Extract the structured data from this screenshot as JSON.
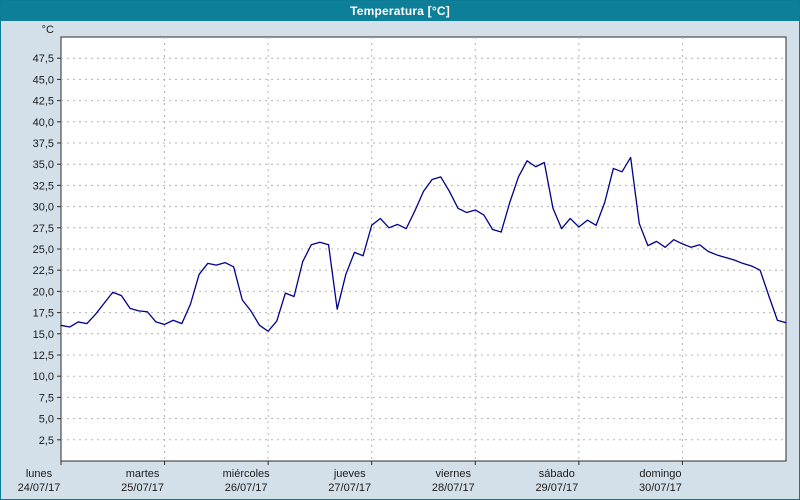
{
  "window": {
    "title": "Temperatura [°C]"
  },
  "colors": {
    "titlebar": "#0e7f99",
    "window_background": "#d4e0e9",
    "plot_background": "#ffffff",
    "plot_border": "#2b2b2b",
    "grid": "#b3b3b3",
    "line": "#00008b",
    "label_text": "#1a1a1a"
  },
  "chart_data": {
    "type": "line",
    "title": "Temperatura [°C]",
    "xlabel": "",
    "ylabel": "°C",
    "ylim": [
      0,
      50
    ],
    "ytick_step": 2.5,
    "grid": "dashed",
    "legend": "none",
    "yticks": [
      "47,5",
      "45,0",
      "42,5",
      "40,0",
      "37,5",
      "35,0",
      "32,5",
      "30,0",
      "27,5",
      "25,0",
      "22,5",
      "20,0",
      "17,5",
      "15,0",
      "12,5",
      "10,0",
      "7,5",
      "5,0",
      "2,5"
    ],
    "x_days": [
      {
        "name": "lunes",
        "date": "24/07/17"
      },
      {
        "name": "martes",
        "date": "25/07/17"
      },
      {
        "name": "miércoles",
        "date": "26/07/17"
      },
      {
        "name": "jueves",
        "date": "27/07/17"
      },
      {
        "name": "viernes",
        "date": "28/07/17"
      },
      {
        "name": "sábado",
        "date": "29/07/17"
      },
      {
        "name": "domingo",
        "date": "30/07/17"
      }
    ],
    "x_unit": "days",
    "x_range_days": 7,
    "points_per_day": 12,
    "series": [
      {
        "name": "Temperatura",
        "color": "#00008b",
        "values": [
          16.0,
          15.8,
          16.4,
          16.2,
          17.3,
          18.6,
          19.9,
          19.5,
          18.0,
          17.7,
          17.6,
          16.4,
          16.1,
          16.6,
          16.2,
          18.5,
          22.0,
          23.3,
          23.1,
          23.4,
          22.9,
          19.0,
          17.7,
          16.0,
          15.3,
          16.5,
          19.8,
          19.4,
          23.5,
          25.5,
          25.8,
          25.5,
          17.9,
          22.0,
          24.6,
          24.2,
          27.8,
          28.6,
          27.5,
          27.9,
          27.4,
          29.5,
          31.8,
          33.2,
          33.5,
          31.8,
          29.8,
          29.3,
          29.6,
          29.0,
          27.3,
          27.0,
          30.5,
          33.5,
          35.4,
          34.7,
          35.2,
          29.8,
          27.4,
          28.6,
          27.6,
          28.4,
          27.8,
          30.5,
          34.5,
          34.1,
          35.8,
          28.0,
          25.4,
          25.9,
          25.2,
          26.1,
          25.6,
          25.2,
          25.5,
          24.7,
          24.3,
          24.0,
          23.7,
          23.3,
          23.0,
          22.5,
          19.5,
          16.6,
          16.3
        ]
      }
    ]
  }
}
